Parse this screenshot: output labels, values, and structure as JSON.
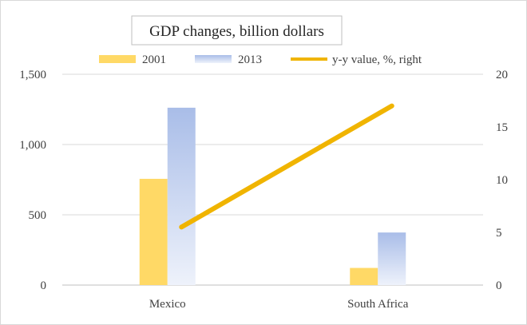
{
  "chart_data": {
    "type": "bar",
    "title": "GDP changes, billion dollars",
    "categories": [
      "Mexico",
      "South Africa"
    ],
    "series": [
      {
        "name": "2001",
        "type": "bar",
        "axis": "left",
        "values": [
          756,
          122
        ],
        "color": "#ffd966"
      },
      {
        "name": "2013",
        "type": "bar",
        "axis": "left",
        "values": [
          1262,
          374
        ],
        "color": "#a9bde8"
      },
      {
        "name": "y-y value, %, right",
        "type": "line",
        "axis": "right",
        "values": [
          5.5,
          17.0
        ],
        "color": "#f0b400"
      }
    ],
    "left_axis": {
      "min": 0,
      "max": 1500,
      "ticks": [
        0,
        500,
        1000,
        1500
      ],
      "tick_labels": [
        "0",
        "500",
        "1,000",
        "1,500"
      ]
    },
    "right_axis": {
      "min": 0,
      "max": 20,
      "ticks": [
        0,
        5,
        10,
        15,
        20
      ],
      "tick_labels": [
        "0",
        "5",
        "10",
        "15",
        "20"
      ]
    },
    "grid": true,
    "legend_position": "top"
  }
}
